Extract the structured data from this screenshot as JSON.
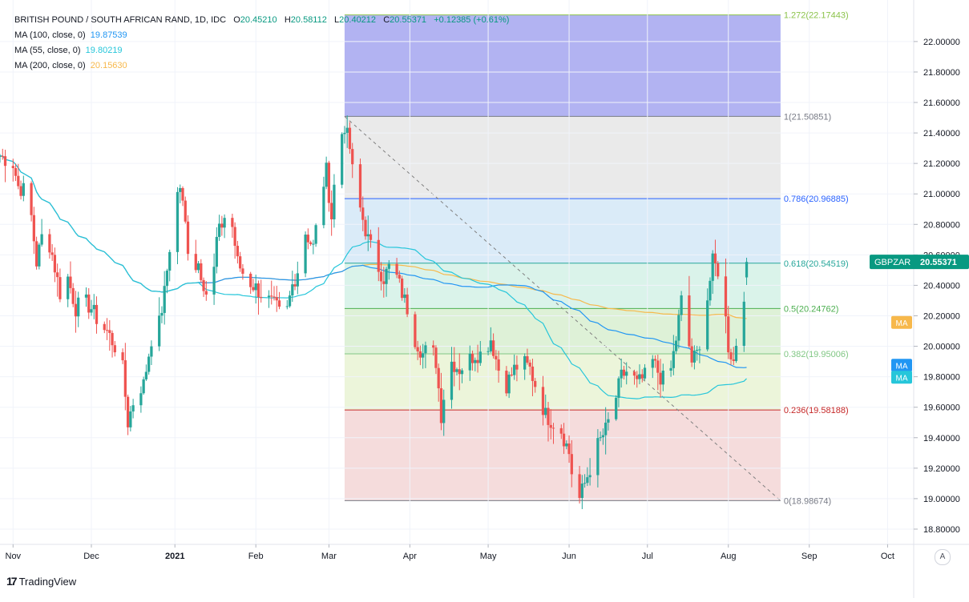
{
  "header": {
    "symbol": "BRITISH POUND / SOUTH AFRICAN RAND, 1D, IDC",
    "o_label": "O",
    "o": "20.45210",
    "h_label": "H",
    "h": "20.58112",
    "l_label": "L",
    "l": "20.40212",
    "c_label": "C",
    "c": "20.55371",
    "change": "+0.12385 (+0.61%)"
  },
  "indicators": [
    {
      "label": "MA (100, close, 0)",
      "value": "19.87539",
      "color": "#2196f3"
    },
    {
      "label": "MA (55, close, 0)",
      "value": "19.80219",
      "color": "#26c6da"
    },
    {
      "label": "MA (200, close, 0)",
      "value": "20.15630",
      "color": "#f7b84b"
    }
  ],
  "price_badge": {
    "symbol": "GBPZAR",
    "price": "20.55371",
    "color": "#089981"
  },
  "ma_tags": [
    {
      "label": "MA",
      "value": 20.1563,
      "color": "#f7b84b"
    },
    {
      "label": "MA",
      "value": 19.87539,
      "color": "#2196f3"
    },
    {
      "label": "MA",
      "value": 19.80219,
      "color": "#26c6da"
    }
  ],
  "branding": {
    "name": "TradingView"
  },
  "auto_button": "A",
  "chart_data": {
    "type": "candlestick",
    "interval": "1D",
    "y_axis": {
      "ticks": [
        "18.80000",
        "19.00000",
        "19.20000",
        "19.40000",
        "19.60000",
        "19.80000",
        "20.00000",
        "20.20000",
        "20.40000",
        "20.60000",
        "20.80000",
        "21.00000",
        "21.20000",
        "21.40000",
        "21.60000",
        "21.80000",
        "22.00000"
      ],
      "range": [
        18.7,
        22.22
      ],
      "position": "right",
      "grid": true
    },
    "x_axis": {
      "labels": [
        "Nov",
        "Dec",
        "2021",
        "Feb",
        "Mar",
        "Apr",
        "May",
        "Jun",
        "Jul",
        "Aug",
        "Sep",
        "Oct"
      ],
      "label_days": [
        0,
        30,
        62,
        93,
        121,
        152,
        182,
        213,
        243,
        274,
        305,
        335
      ],
      "start": "2020-10-26",
      "range_days": [
        -5,
        345
      ]
    },
    "fibonacci": {
      "start_day": 127,
      "end_day": 294,
      "high": 21.50851,
      "low": 18.98674,
      "levels": [
        {
          "label": "1.272(22.17443)",
          "value": 22.17443,
          "line": "#8bc34a",
          "fill": "#a4a6f0"
        },
        {
          "label": "1(21.50851)",
          "value": 21.50851,
          "line": "#787b86",
          "fill": "#e6e6e6"
        },
        {
          "label": "0.786(20.96885)",
          "value": 20.96885,
          "line": "#2962ff",
          "fill": "#d4e8f7"
        },
        {
          "label": "0.618(20.54519)",
          "value": 20.54519,
          "line": "#26a69a",
          "fill": "#d3f1e6"
        },
        {
          "label": "0.5(20.24762)",
          "value": 20.24762,
          "line": "#4caf50",
          "fill": "#d8efd0"
        },
        {
          "label": "0.382(19.95006)",
          "value": 19.95006,
          "line": "#81c784",
          "fill": "#e9f3d4"
        },
        {
          "label": "0.236(19.58188)",
          "value": 19.58188,
          "line": "#c62828",
          "fill": "#f3d6d6"
        },
        {
          "label": "0(18.98674)",
          "value": 18.98674,
          "line": "#787b86",
          "fill": null
        }
      ],
      "trend_line": {
        "from": [
          127,
          21.50851
        ],
        "to": [
          294,
          18.98674
        ]
      }
    },
    "last": {
      "open": 20.4521,
      "high": 20.58112,
      "low": 20.40212,
      "close": 20.55371
    },
    "anchors": [
      [
        -5,
        21.25
      ],
      [
        0,
        21.2
      ],
      [
        2,
        21.05
      ],
      [
        6,
        21.0
      ],
      [
        9,
        20.55
      ],
      [
        12,
        20.8
      ],
      [
        15,
        20.6
      ],
      [
        18,
        20.35
      ],
      [
        21,
        20.45
      ],
      [
        24,
        20.25
      ],
      [
        27,
        20.3
      ],
      [
        30,
        20.25
      ],
      [
        33,
        20.15
      ],
      [
        36,
        20.1
      ],
      [
        39,
        20.0
      ],
      [
        42,
        19.85
      ],
      [
        44,
        19.5
      ],
      [
        47,
        19.7
      ],
      [
        50,
        19.75
      ],
      [
        53,
        20.05
      ],
      [
        56,
        20.15
      ],
      [
        58,
        20.35
      ],
      [
        60,
        20.65
      ],
      [
        62,
        20.95
      ],
      [
        64,
        21.05
      ],
      [
        66,
        20.8
      ],
      [
        68,
        20.5
      ],
      [
        71,
        20.55
      ],
      [
        74,
        20.35
      ],
      [
        76,
        20.3
      ],
      [
        78,
        20.7
      ],
      [
        81,
        20.85
      ],
      [
        83,
        20.9
      ],
      [
        86,
        20.55
      ],
      [
        89,
        20.45
      ],
      [
        92,
        20.4
      ],
      [
        95,
        20.35
      ],
      [
        98,
        20.3
      ],
      [
        101,
        20.25
      ],
      [
        104,
        20.15
      ],
      [
        107,
        20.4
      ],
      [
        110,
        20.55
      ],
      [
        112,
        20.75
      ],
      [
        115,
        20.65
      ],
      [
        118,
        21.0
      ],
      [
        120,
        21.15
      ],
      [
        122,
        20.85
      ],
      [
        124,
        21.25
      ],
      [
        126,
        21.4
      ],
      [
        127,
        21.45
      ],
      [
        129,
        21.3
      ],
      [
        131,
        21.0
      ],
      [
        133,
        20.9
      ],
      [
        136,
        20.7
      ],
      [
        139,
        20.55
      ],
      [
        142,
        20.45
      ],
      [
        145,
        20.55
      ],
      [
        148,
        20.4
      ],
      [
        151,
        20.25
      ],
      [
        154,
        20.05
      ],
      [
        157,
        19.95
      ],
      [
        160,
        20.0
      ],
      [
        162,
        19.9
      ],
      [
        164,
        19.55
      ],
      [
        166,
        19.8
      ],
      [
        168,
        19.9
      ],
      [
        171,
        19.85
      ],
      [
        174,
        19.9
      ],
      [
        177,
        19.95
      ],
      [
        180,
        19.95
      ],
      [
        183,
        20.05
      ],
      [
        186,
        19.85
      ],
      [
        189,
        19.75
      ],
      [
        192,
        19.85
      ],
      [
        195,
        19.9
      ],
      [
        198,
        19.85
      ],
      [
        201,
        19.7
      ],
      [
        204,
        19.55
      ],
      [
        207,
        19.5
      ],
      [
        210,
        19.45
      ],
      [
        213,
        19.3
      ],
      [
        215,
        19.05
      ],
      [
        217,
        19.0
      ],
      [
        219,
        19.1
      ],
      [
        221,
        19.2
      ],
      [
        224,
        19.35
      ],
      [
        227,
        19.45
      ],
      [
        230,
        19.6
      ],
      [
        233,
        19.8
      ],
      [
        236,
        19.85
      ],
      [
        239,
        19.75
      ],
      [
        242,
        19.8
      ],
      [
        245,
        19.9
      ],
      [
        248,
        19.8
      ],
      [
        251,
        19.75
      ],
      [
        254,
        20.05
      ],
      [
        256,
        20.3
      ],
      [
        258,
        20.1
      ],
      [
        260,
        19.9
      ],
      [
        262,
        19.95
      ],
      [
        265,
        20.2
      ],
      [
        268,
        20.55
      ],
      [
        270,
        20.5
      ],
      [
        272,
        20.35
      ],
      [
        274,
        20.0
      ],
      [
        276,
        19.9
      ],
      [
        278,
        20.15
      ],
      [
        280,
        20.35
      ],
      [
        281,
        20.45
      ]
    ]
  }
}
